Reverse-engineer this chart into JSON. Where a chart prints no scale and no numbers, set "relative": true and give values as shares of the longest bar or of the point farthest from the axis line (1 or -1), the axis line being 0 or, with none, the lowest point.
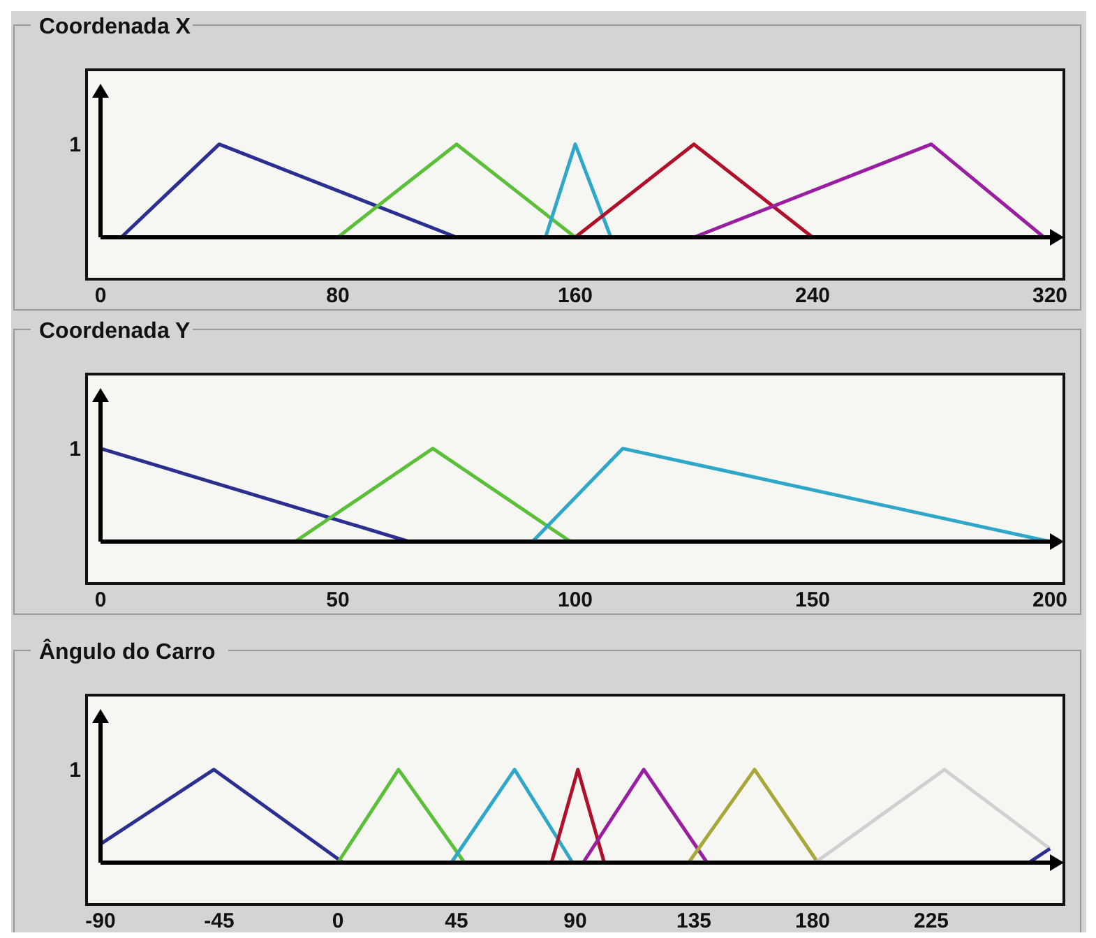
{
  "chart_data": [
    {
      "type": "line",
      "title": "Coordenada X",
      "relative": true,
      "annotations": [
        "1"
      ],
      "xlim": [
        0,
        320
      ],
      "xticks": [
        0,
        80,
        160,
        240,
        320
      ],
      "line_style": "solid",
      "series": [
        {
          "color": "#2b2f8f",
          "x": [
            7,
            40,
            120
          ],
          "values": [
            0,
            1,
            0
          ]
        },
        {
          "color": "#5cbf3a",
          "x": [
            80,
            120,
            160
          ],
          "values": [
            0,
            1,
            0
          ]
        },
        {
          "color": "#2fa7c8",
          "x": [
            150,
            160,
            172
          ],
          "values": [
            0,
            1,
            0
          ]
        },
        {
          "color": "#b0102a",
          "x": [
            160,
            200,
            240
          ],
          "values": [
            0,
            1,
            0
          ]
        },
        {
          "color": "#9a1fa0",
          "x": [
            200,
            280,
            318
          ],
          "values": [
            0,
            1,
            0
          ]
        }
      ]
    },
    {
      "type": "line",
      "title": "Coordenada Y",
      "relative": true,
      "annotations": [
        "1"
      ],
      "xlim": [
        0,
        200
      ],
      "xticks": [
        0,
        50,
        100,
        150,
        200
      ],
      "line_style": "solid",
      "series": [
        {
          "color": "#2b2f8f",
          "x": [
            0,
            65
          ],
          "values": [
            1,
            0
          ]
        },
        {
          "color": "#5cbf3a",
          "x": [
            41,
            70,
            99
          ],
          "values": [
            0,
            1,
            0
          ]
        },
        {
          "color": "#2fa7c8",
          "x": [
            91,
            110,
            200
          ],
          "values": [
            0,
            1,
            0
          ]
        }
      ]
    },
    {
      "type": "line",
      "title": "Ângulo do Carro",
      "relative": true,
      "annotations": [
        "1"
      ],
      "xlim": [
        -90,
        270
      ],
      "xticks": [
        -90,
        -45,
        0,
        45,
        90,
        135,
        180,
        225
      ],
      "line_style": "solid",
      "series": [
        {
          "color": "#2b2f8f",
          "x": [
            -90,
            -47,
            2
          ],
          "values": [
            0.2,
            1,
            0
          ]
        },
        {
          "color": "#5cbf3a",
          "x": [
            0,
            23,
            48
          ],
          "values": [
            0,
            1,
            0
          ]
        },
        {
          "color": "#2fa7c8",
          "x": [
            43,
            67,
            89
          ],
          "values": [
            0,
            1,
            0
          ]
        },
        {
          "color": "#b0102a",
          "x": [
            81,
            91,
            101
          ],
          "values": [
            0,
            1,
            0
          ]
        },
        {
          "color": "#9a1fa0",
          "x": [
            93,
            116,
            140
          ],
          "values": [
            0,
            1,
            0
          ]
        },
        {
          "color": "#a8a83a",
          "x": [
            133,
            158,
            182
          ],
          "values": [
            0,
            1,
            0
          ]
        },
        {
          "color": "#d0d0d0",
          "x": [
            181,
            230,
            270
          ],
          "values": [
            0,
            1,
            0.15
          ]
        },
        {
          "color": "#2b2f8f",
          "x": [
            262,
            270
          ],
          "values": [
            0,
            0.15
          ]
        }
      ]
    }
  ]
}
